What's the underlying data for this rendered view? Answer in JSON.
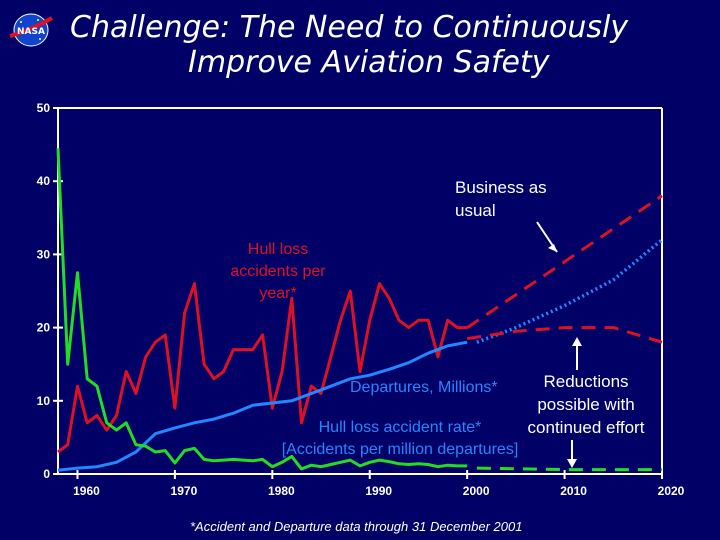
{
  "header": {
    "logo_text": "NASA",
    "title_line1": "Challenge: The Need to Continuously",
    "title_line2": "Improve Aviation Safety"
  },
  "footnote": "*Accident and Departure data through 31 December 2001",
  "colors": {
    "background": "#000066",
    "hull_loss": "#dd1122",
    "departures": "#2288ff",
    "rate": "#22dd22",
    "axis": "#ffffff"
  },
  "chart_data": {
    "type": "line",
    "title": "Challenge: The Need to Continuously Improve Aviation Safety",
    "xlim": [
      1958,
      2020
    ],
    "ylim": [
      0,
      50
    ],
    "x_ticks": [
      1960,
      1970,
      1980,
      1990,
      2000,
      2010,
      2020
    ],
    "y_ticks": [
      0,
      10,
      20,
      30,
      40,
      50
    ],
    "series": [
      {
        "name": "Hull loss accidents per year*",
        "color": "#dd1122",
        "style": "solid",
        "points": [
          [
            1958,
            3
          ],
          [
            1959,
            4
          ],
          [
            1960,
            12
          ],
          [
            1961,
            7
          ],
          [
            1962,
            8
          ],
          [
            1963,
            6
          ],
          [
            1964,
            8
          ],
          [
            1965,
            14
          ],
          [
            1966,
            11
          ],
          [
            1967,
            16
          ],
          [
            1968,
            18
          ],
          [
            1969,
            19
          ],
          [
            1970,
            9
          ],
          [
            1971,
            22
          ],
          [
            1972,
            26
          ],
          [
            1973,
            15
          ],
          [
            1974,
            13
          ],
          [
            1975,
            14
          ],
          [
            1976,
            17
          ],
          [
            1977,
            17
          ],
          [
            1978,
            17
          ],
          [
            1979,
            19
          ],
          [
            1980,
            9
          ],
          [
            1981,
            14
          ],
          [
            1982,
            24
          ],
          [
            1983,
            7
          ],
          [
            1984,
            12
          ],
          [
            1985,
            11
          ],
          [
            1986,
            16
          ],
          [
            1987,
            21
          ],
          [
            1988,
            25
          ],
          [
            1989,
            14
          ],
          [
            1990,
            21
          ],
          [
            1991,
            26
          ],
          [
            1992,
            24
          ],
          [
            1993,
            21
          ],
          [
            1994,
            20
          ],
          [
            1995,
            21
          ],
          [
            1996,
            21
          ],
          [
            1997,
            16
          ],
          [
            1998,
            21
          ],
          [
            1999,
            20
          ],
          [
            2000,
            20
          ]
        ]
      },
      {
        "name": "Departures, Millions*",
        "color": "#2288ff",
        "style": "solid",
        "points": [
          [
            1958,
            0.5
          ],
          [
            1960,
            0.8
          ],
          [
            1962,
            1.0
          ],
          [
            1964,
            1.6
          ],
          [
            1966,
            3
          ],
          [
            1968,
            5.5
          ],
          [
            1970,
            6.3
          ],
          [
            1972,
            7
          ],
          [
            1974,
            7.5
          ],
          [
            1976,
            8.3
          ],
          [
            1978,
            9.4
          ],
          [
            1980,
            9.7
          ],
          [
            1982,
            10
          ],
          [
            1984,
            11
          ],
          [
            1986,
            12
          ],
          [
            1988,
            13
          ],
          [
            1990,
            13.5
          ],
          [
            1992,
            14.3
          ],
          [
            1994,
            15.2
          ],
          [
            1996,
            16.5
          ],
          [
            1998,
            17.5
          ],
          [
            2000,
            18
          ]
        ]
      },
      {
        "name": "Hull loss accident rate* [Accidents per million departures]",
        "color": "#22dd22",
        "style": "solid",
        "points": [
          [
            1958,
            44.5
          ],
          [
            1959,
            15
          ],
          [
            1960,
            27.5
          ],
          [
            1961,
            13
          ],
          [
            1962,
            12
          ],
          [
            1963,
            7
          ],
          [
            1964,
            6
          ],
          [
            1965,
            7
          ],
          [
            1966,
            4
          ],
          [
            1967,
            3.8
          ],
          [
            1968,
            3
          ],
          [
            1969,
            3.2
          ],
          [
            1970,
            1.5
          ],
          [
            1971,
            3.2
          ],
          [
            1972,
            3.5
          ],
          [
            1973,
            2
          ],
          [
            1974,
            1.8
          ],
          [
            1975,
            1.9
          ],
          [
            1976,
            2
          ],
          [
            1977,
            1.9
          ],
          [
            1978,
            1.8
          ],
          [
            1979,
            2
          ],
          [
            1980,
            1
          ],
          [
            1981,
            1.6
          ],
          [
            1982,
            2.4
          ],
          [
            1983,
            0.7
          ],
          [
            1984,
            1.2
          ],
          [
            1985,
            1
          ],
          [
            1986,
            1.3
          ],
          [
            1987,
            1.6
          ],
          [
            1988,
            1.9
          ],
          [
            1989,
            1.1
          ],
          [
            1990,
            1.6
          ],
          [
            1991,
            1.9
          ],
          [
            1992,
            1.7
          ],
          [
            1993,
            1.4
          ],
          [
            1994,
            1.3
          ],
          [
            1995,
            1.4
          ],
          [
            1996,
            1.3
          ],
          [
            1997,
            1
          ],
          [
            1998,
            1.2
          ],
          [
            1999,
            1.1
          ],
          [
            2000,
            1.1
          ]
        ]
      },
      {
        "name": "Hull loss accidents projection (business as usual)",
        "color": "#dd1122",
        "style": "dashed",
        "points": [
          [
            2000,
            20
          ],
          [
            2005,
            24.5
          ],
          [
            2010,
            29
          ],
          [
            2015,
            33.5
          ],
          [
            2020,
            38
          ]
        ]
      },
      {
        "name": "Departures projection",
        "color": "#2288ff",
        "style": "dotted",
        "points": [
          [
            2001,
            18
          ],
          [
            2005,
            20
          ],
          [
            2010,
            23
          ],
          [
            2015,
            26.5
          ],
          [
            2020,
            32
          ]
        ]
      },
      {
        "name": "Hull loss accidents projection (reductions with continued effort)",
        "color": "#dd1122",
        "style": "dashed",
        "points": [
          [
            2000,
            18.5
          ],
          [
            2005,
            19.5
          ],
          [
            2010,
            20
          ],
          [
            2015,
            20
          ],
          [
            2020,
            18
          ]
        ]
      },
      {
        "name": "Hull loss accident rate projection",
        "color": "#22dd22",
        "style": "dashed",
        "points": [
          [
            2001,
            0.8
          ],
          [
            2010,
            0.6
          ],
          [
            2020,
            0.6
          ]
        ]
      }
    ],
    "annotations": [
      {
        "id": "business-as-usual",
        "lines": [
          "Business as",
          "usual"
        ],
        "color": "#ffffff"
      },
      {
        "id": "hull-loss-label",
        "lines": [
          "Hull loss",
          "accidents per",
          "year*"
        ],
        "color": "#dd1122"
      },
      {
        "id": "departures-label",
        "lines": [
          "Departures, Millions*"
        ],
        "color": "#2288ff"
      },
      {
        "id": "reductions-label",
        "lines": [
          "Reductions",
          "possible with",
          "continued effort"
        ],
        "color": "#ffffff"
      },
      {
        "id": "rate-label",
        "lines": [
          "Hull loss accident rate*",
          "[Accidents per million departures]"
        ],
        "color": "#2288ff"
      }
    ]
  }
}
